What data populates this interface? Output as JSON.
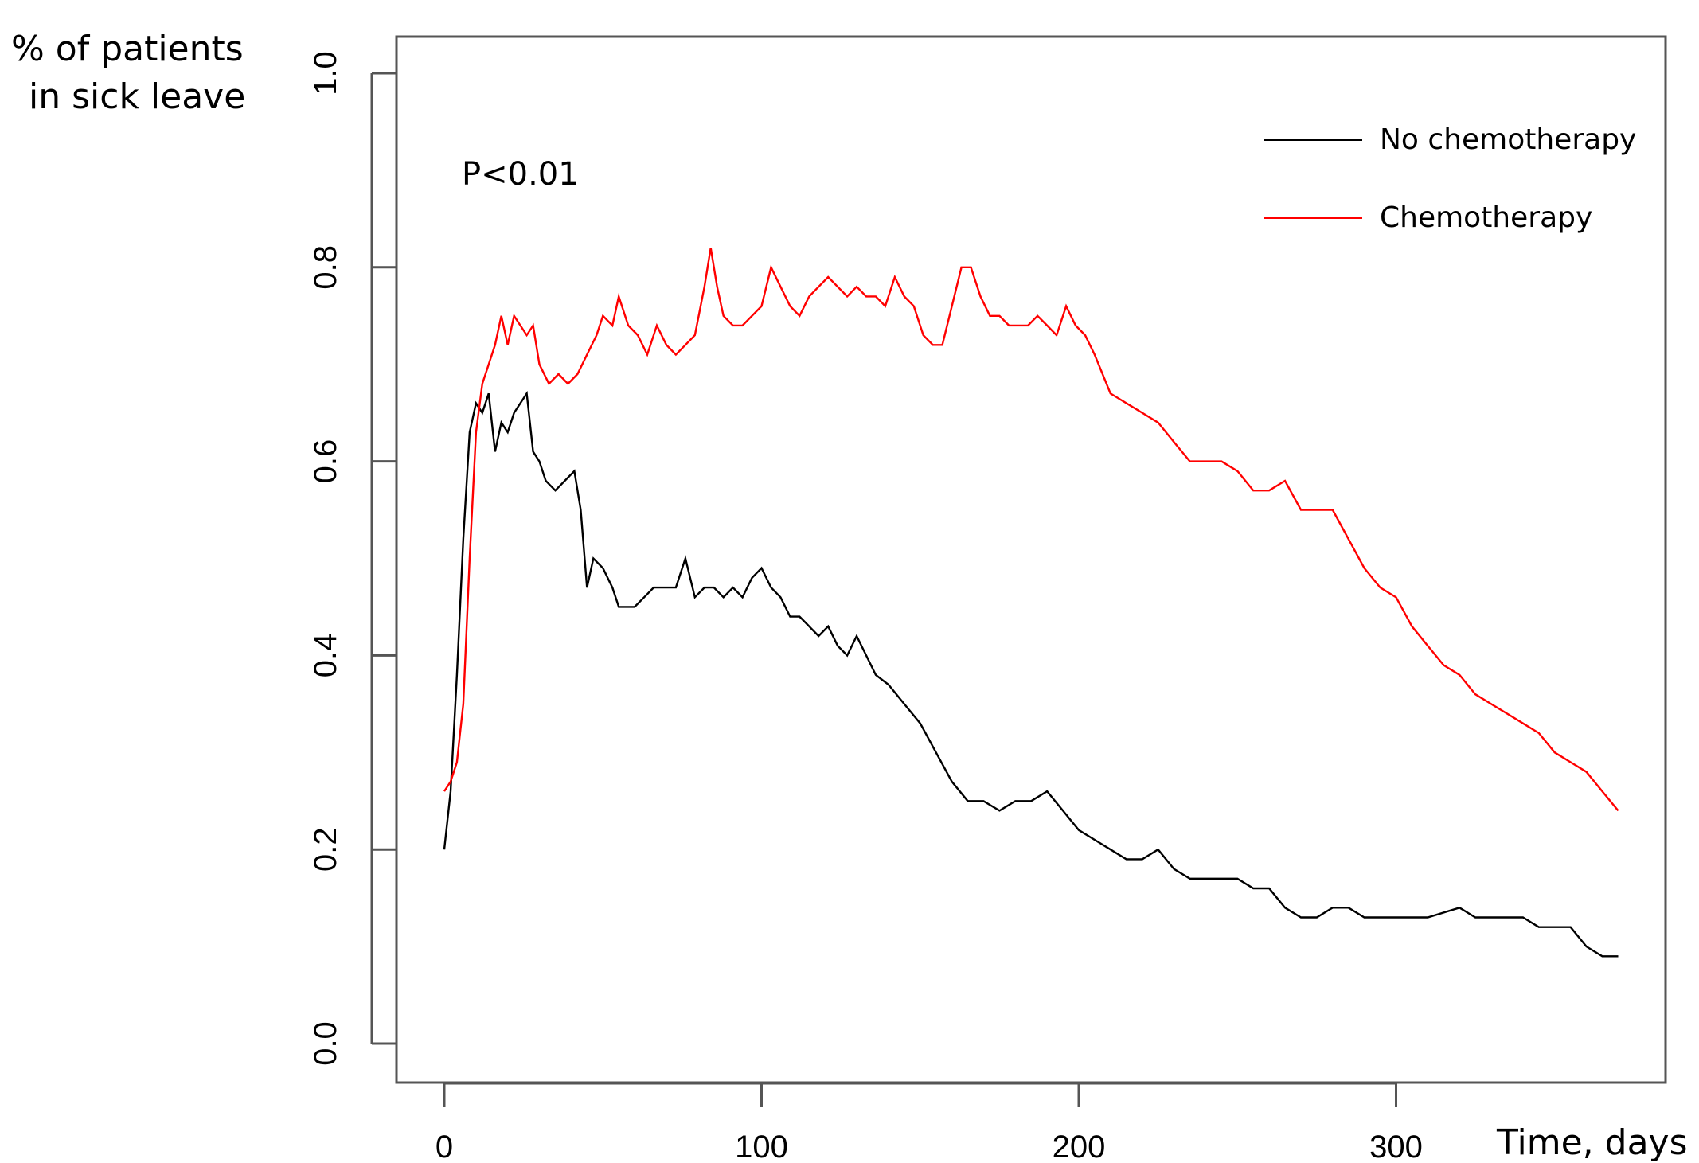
{
  "chart_data": {
    "type": "line",
    "title": "",
    "ylabel_lines": [
      "% of patients",
      "in sick leave"
    ],
    "xlabel": "Time, days",
    "annotation": "P<0.01",
    "xlim": [
      0,
      370
    ],
    "ylim": [
      0.0,
      1.0
    ],
    "x_ticks": [
      0,
      100,
      200,
      300
    ],
    "x_tick_labels": [
      "0",
      "100",
      "200",
      "300"
    ],
    "y_ticks": [
      0.0,
      0.2,
      0.4,
      0.6,
      0.8,
      1.0
    ],
    "y_tick_labels": [
      "0.0",
      "0.2",
      "0.4",
      "0.6",
      "0.8",
      "1.0"
    ],
    "grid": false,
    "legend_position": "top-right",
    "series": [
      {
        "name": "No chemotherapy",
        "color": "#000000",
        "x": [
          0,
          2,
          4,
          6,
          8,
          10,
          12,
          14,
          16,
          18,
          20,
          22,
          24,
          26,
          28,
          30,
          32,
          35,
          38,
          41,
          43,
          45,
          47,
          50,
          53,
          55,
          57,
          60,
          63,
          66,
          68,
          70,
          73,
          76,
          79,
          82,
          85,
          88,
          91,
          94,
          97,
          100,
          103,
          106,
          109,
          112,
          115,
          118,
          121,
          124,
          127,
          130,
          133,
          136,
          140,
          145,
          150,
          155,
          160,
          165,
          170,
          175,
          180,
          185,
          190,
          195,
          200,
          205,
          210,
          215,
          220,
          225,
          230,
          235,
          240,
          245,
          250,
          255,
          260,
          265,
          270,
          275,
          280,
          285,
          290,
          300,
          310,
          320,
          325,
          330,
          340,
          345,
          350,
          355,
          360,
          365,
          370
        ],
        "y": [
          0.2,
          0.26,
          0.38,
          0.52,
          0.63,
          0.66,
          0.65,
          0.67,
          0.61,
          0.64,
          0.63,
          0.65,
          0.66,
          0.67,
          0.61,
          0.6,
          0.58,
          0.57,
          0.58,
          0.59,
          0.55,
          0.47,
          0.5,
          0.49,
          0.47,
          0.45,
          0.45,
          0.45,
          0.46,
          0.47,
          0.47,
          0.47,
          0.47,
          0.5,
          0.46,
          0.47,
          0.47,
          0.46,
          0.47,
          0.46,
          0.48,
          0.49,
          0.47,
          0.46,
          0.44,
          0.44,
          0.43,
          0.42,
          0.43,
          0.41,
          0.4,
          0.42,
          0.4,
          0.38,
          0.37,
          0.35,
          0.33,
          0.3,
          0.27,
          0.25,
          0.25,
          0.24,
          0.25,
          0.25,
          0.26,
          0.24,
          0.22,
          0.21,
          0.2,
          0.19,
          0.19,
          0.2,
          0.18,
          0.17,
          0.17,
          0.17,
          0.17,
          0.16,
          0.16,
          0.14,
          0.13,
          0.13,
          0.14,
          0.14,
          0.13,
          0.13,
          0.13,
          0.14,
          0.13,
          0.13,
          0.13,
          0.12,
          0.12,
          0.12,
          0.1,
          0.09,
          0.09
        ]
      },
      {
        "name": "Chemotherapy",
        "color": "#ff0000",
        "x": [
          0,
          2,
          4,
          6,
          8,
          10,
          12,
          14,
          16,
          18,
          20,
          22,
          24,
          26,
          28,
          30,
          33,
          36,
          39,
          42,
          45,
          48,
          50,
          53,
          55,
          58,
          61,
          64,
          67,
          70,
          73,
          76,
          79,
          82,
          84,
          86,
          88,
          91,
          94,
          97,
          100,
          103,
          106,
          109,
          112,
          115,
          118,
          121,
          124,
          127,
          130,
          133,
          136,
          139,
          142,
          145,
          148,
          151,
          154,
          157,
          160,
          163,
          166,
          169,
          172,
          175,
          178,
          181,
          184,
          187,
          190,
          193,
          196,
          199,
          202,
          205,
          210,
          215,
          220,
          225,
          230,
          235,
          240,
          245,
          250,
          255,
          260,
          265,
          270,
          275,
          280,
          285,
          290,
          295,
          300,
          305,
          310,
          315,
          320,
          325,
          330,
          335,
          340,
          345,
          350,
          355,
          360,
          365,
          370
        ],
        "y": [
          0.26,
          0.27,
          0.29,
          0.35,
          0.5,
          0.63,
          0.68,
          0.7,
          0.72,
          0.75,
          0.72,
          0.75,
          0.74,
          0.73,
          0.74,
          0.7,
          0.68,
          0.69,
          0.68,
          0.69,
          0.71,
          0.73,
          0.75,
          0.74,
          0.77,
          0.74,
          0.73,
          0.71,
          0.74,
          0.72,
          0.71,
          0.72,
          0.73,
          0.78,
          0.82,
          0.78,
          0.75,
          0.74,
          0.74,
          0.75,
          0.76,
          0.8,
          0.78,
          0.76,
          0.75,
          0.77,
          0.78,
          0.79,
          0.78,
          0.77,
          0.78,
          0.77,
          0.77,
          0.76,
          0.79,
          0.77,
          0.76,
          0.73,
          0.72,
          0.72,
          0.76,
          0.8,
          0.8,
          0.77,
          0.75,
          0.75,
          0.74,
          0.74,
          0.74,
          0.75,
          0.74,
          0.73,
          0.76,
          0.74,
          0.73,
          0.71,
          0.67,
          0.66,
          0.65,
          0.64,
          0.62,
          0.6,
          0.6,
          0.6,
          0.59,
          0.57,
          0.57,
          0.58,
          0.55,
          0.55,
          0.55,
          0.52,
          0.49,
          0.47,
          0.46,
          0.43,
          0.41,
          0.39,
          0.38,
          0.36,
          0.35,
          0.34,
          0.33,
          0.32,
          0.3,
          0.29,
          0.28,
          0.26,
          0.24
        ]
      }
    ]
  }
}
